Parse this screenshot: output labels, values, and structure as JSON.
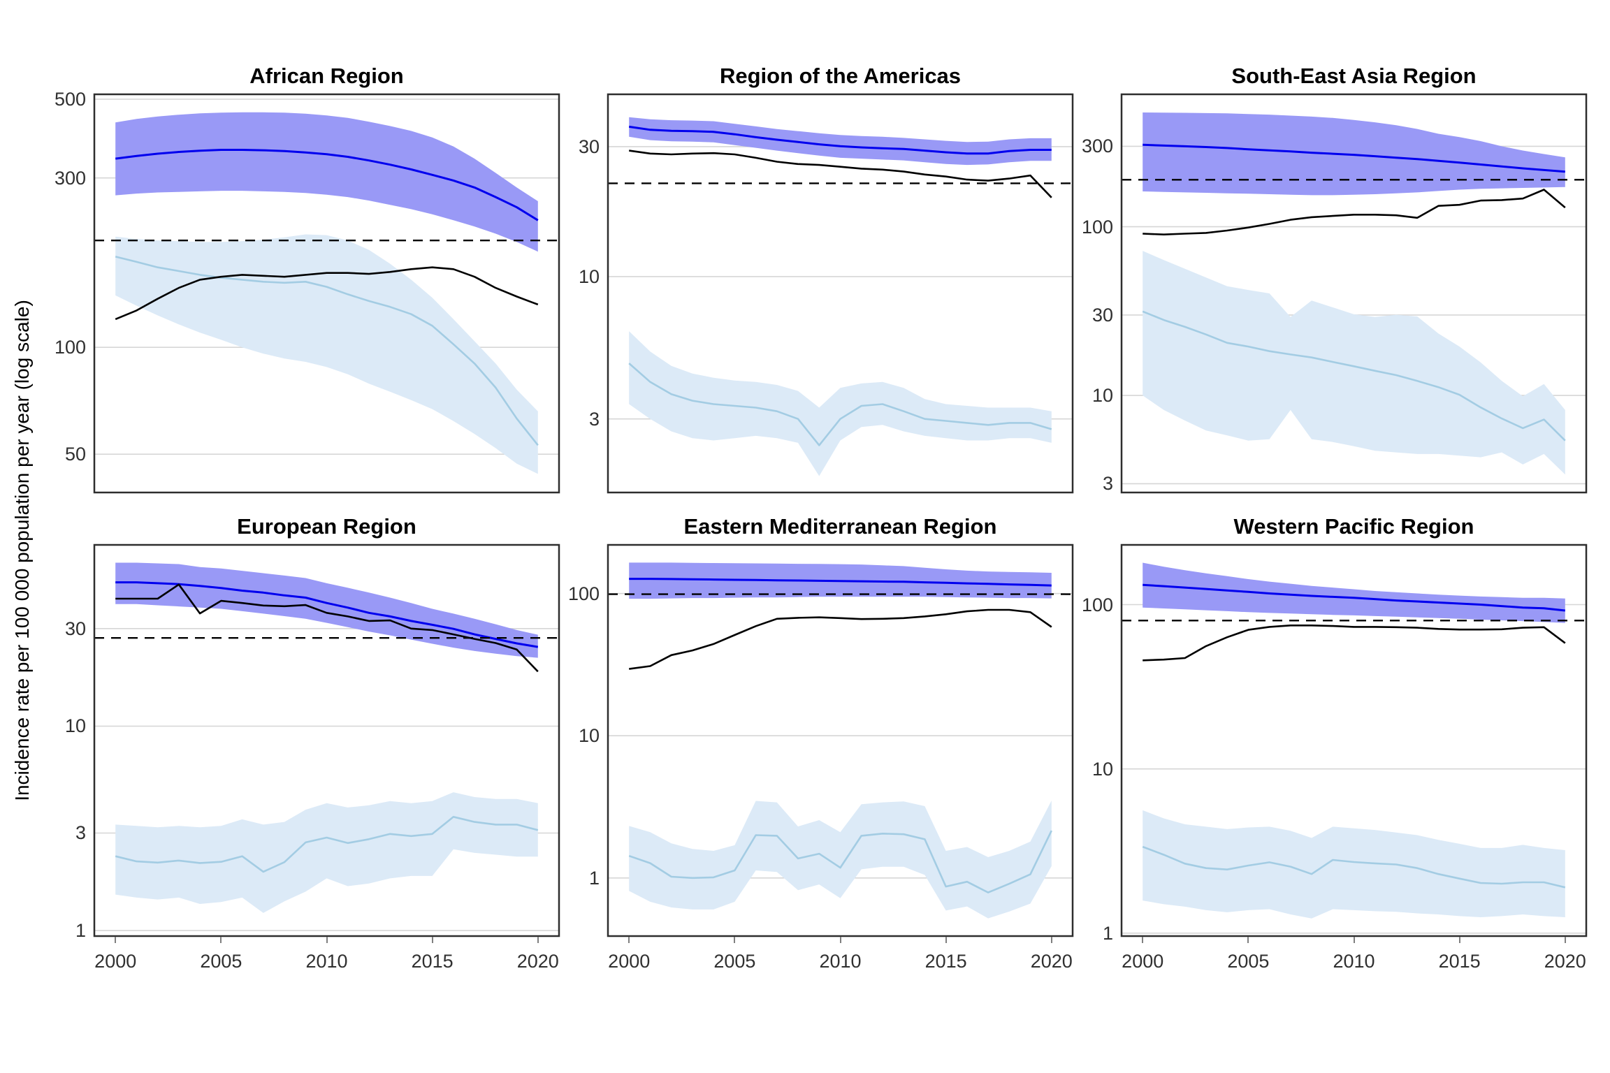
{
  "chart_data": {
    "type": "line",
    "title": "",
    "ylabel": "Incidence rate per 100 000 population per year (log scale)",
    "xlabel": "",
    "x": [
      2000,
      2001,
      2002,
      2003,
      2004,
      2005,
      2006,
      2007,
      2008,
      2009,
      2010,
      2011,
      2012,
      2013,
      2014,
      2015,
      2016,
      2017,
      2018,
      2019,
      2020
    ],
    "x_ticks": [
      2000,
      2005,
      2010,
      2015,
      2020
    ],
    "x_range": [
      1999,
      2021
    ],
    "grid": "major-horizontal-only",
    "legend": "none",
    "series_roles": [
      "blue_estimate_line",
      "blue_ribbon_upper",
      "blue_ribbon_lower",
      "black_line",
      "light_blue_line",
      "light_ribbon_upper",
      "light_ribbon_lower",
      "dashed_reference_level"
    ],
    "panels": [
      {
        "title": "African Region",
        "row": 0,
        "col": 0,
        "ylim": [
          39,
          516
        ],
        "yticks": [
          500,
          300,
          100,
          50
        ],
        "dashed": 200,
        "series": {
          "blue": [
            340,
            346,
            351,
            355,
            358,
            360,
            360,
            359,
            357,
            354,
            350,
            344,
            336,
            327,
            317,
            306,
            295,
            282,
            265,
            248,
            228
          ],
          "blue_upper": [
            430,
            440,
            447,
            452,
            456,
            458,
            459,
            459,
            458,
            455,
            450,
            443,
            432,
            420,
            407,
            390,
            368,
            340,
            310,
            282,
            258
          ],
          "blue_lower": [
            268,
            271,
            273,
            274,
            275,
            276,
            276,
            275,
            274,
            272,
            269,
            265,
            259,
            252,
            245,
            237,
            228,
            219,
            209,
            198,
            186
          ],
          "black": [
            120,
            127,
            137,
            147,
            155,
            158,
            160,
            159,
            158,
            160,
            162,
            162,
            161,
            163,
            166,
            168,
            166,
            158,
            147,
            139,
            132
          ],
          "light": [
            180,
            174,
            168,
            164,
            160,
            157,
            155,
            153,
            152,
            153,
            148,
            141,
            135,
            130,
            124,
            115,
            102,
            90,
            77,
            63,
            53
          ],
          "light_upper": [
            205,
            202,
            200,
            199,
            198,
            198,
            199,
            201,
            204,
            208,
            207,
            200,
            188,
            172,
            155,
            138,
            120,
            104,
            90,
            76,
            66
          ],
          "light_lower": [
            140,
            131,
            123,
            116,
            110,
            105,
            100,
            96,
            93,
            91,
            88,
            84,
            79,
            75,
            71,
            67,
            62,
            57,
            52,
            47,
            44
          ]
        }
      },
      {
        "title": "Region of the Americas",
        "row": 0,
        "col": 1,
        "ylim": [
          1.61,
          46.7
        ],
        "yticks": [
          30,
          10,
          3
        ],
        "dashed": 22,
        "series": {
          "blue": [
            35.5,
            34.6,
            34.3,
            34.2,
            34.0,
            33.3,
            32.5,
            31.8,
            31.2,
            30.6,
            30.1,
            29.8,
            29.6,
            29.4,
            29.0,
            28.6,
            28.3,
            28.3,
            28.9,
            29.2,
            29.2
          ],
          "blue_upper": [
            38.5,
            37.8,
            37.5,
            37.4,
            37.2,
            36.4,
            35.6,
            34.8,
            34.2,
            33.6,
            33.1,
            32.8,
            32.6,
            32.3,
            31.9,
            31.5,
            31.2,
            31.3,
            31.9,
            32.2,
            32.2
          ],
          "blue_lower": [
            32.6,
            31.7,
            31.4,
            31.3,
            31.1,
            30.4,
            29.7,
            29.0,
            28.4,
            27.8,
            27.3,
            27.1,
            26.9,
            26.7,
            26.3,
            25.9,
            25.7,
            25.8,
            26.3,
            26.6,
            26.6
          ],
          "black": [
            29.0,
            28.3,
            28.1,
            28.3,
            28.4,
            28.1,
            27.3,
            26.4,
            25.9,
            25.7,
            25.3,
            24.9,
            24.7,
            24.3,
            23.7,
            23.3,
            22.7,
            22.5,
            22.9,
            23.5,
            19.5
          ],
          "light": [
            4.8,
            4.1,
            3.7,
            3.5,
            3.4,
            3.35,
            3.3,
            3.2,
            3.0,
            2.4,
            3.0,
            3.35,
            3.4,
            3.2,
            3.0,
            2.95,
            2.9,
            2.85,
            2.9,
            2.9,
            2.75
          ],
          "light_upper": [
            6.3,
            5.3,
            4.7,
            4.4,
            4.25,
            4.15,
            4.1,
            4.0,
            3.8,
            3.3,
            3.9,
            4.05,
            4.1,
            3.9,
            3.55,
            3.4,
            3.35,
            3.3,
            3.3,
            3.3,
            3.2
          ],
          "light_lower": [
            3.4,
            3.0,
            2.7,
            2.55,
            2.5,
            2.55,
            2.6,
            2.55,
            2.45,
            1.85,
            2.5,
            2.8,
            2.85,
            2.7,
            2.6,
            2.55,
            2.5,
            2.5,
            2.55,
            2.55,
            2.45
          ]
        }
      },
      {
        "title": "South-East Asia Region",
        "row": 0,
        "col": 2,
        "ylim": [
          2.66,
          610
        ],
        "yticks": [
          300,
          100,
          30,
          10,
          3
        ],
        "dashed": 190,
        "series": {
          "blue": [
            306,
            303,
            300,
            297,
            293,
            288,
            284,
            280,
            275,
            271,
            267,
            262,
            257,
            252,
            246,
            240,
            234,
            228,
            222,
            217,
            212
          ],
          "blue_upper": [
            476,
            475,
            474,
            472,
            470,
            466,
            462,
            456,
            450,
            442,
            430,
            416,
            400,
            380,
            356,
            340,
            322,
            300,
            283,
            270,
            258
          ],
          "blue_lower": [
            162,
            161,
            160,
            159,
            158,
            157,
            156,
            155,
            154,
            154,
            155,
            156,
            158,
            160,
            163,
            166,
            168,
            169,
            170,
            171,
            172
          ],
          "black": [
            91,
            90,
            91,
            92,
            95,
            99,
            104,
            110,
            114,
            116,
            118,
            118,
            117,
            113,
            133,
            135,
            143,
            144,
            147,
            166,
            130
          ],
          "light": [
            31.5,
            28,
            25.5,
            23,
            20.5,
            19.5,
            18.3,
            17.5,
            16.8,
            15.8,
            14.9,
            14.0,
            13.2,
            12.2,
            11.2,
            10.1,
            8.5,
            7.3,
            6.4,
            7.2,
            5.4
          ],
          "light_upper": [
            72,
            63.5,
            56.4,
            50,
            44.4,
            42.2,
            40.3,
            29.2,
            36.5,
            33.3,
            30.3,
            29.2,
            30.1,
            29.4,
            23.3,
            19.5,
            15.7,
            12.2,
            9.9,
            11.7,
            8.2
          ],
          "light_lower": [
            10.0,
            8.2,
            7.1,
            6.2,
            5.8,
            5.4,
            5.5,
            8.2,
            5.5,
            5.3,
            5.0,
            4.7,
            4.6,
            4.5,
            4.5,
            4.4,
            4.3,
            4.6,
            3.9,
            4.5,
            3.4
          ]
        }
      },
      {
        "title": "European Region",
        "row": 1,
        "col": 0,
        "ylim": [
          0.94,
          77
        ],
        "yticks": [
          30,
          10,
          3,
          1
        ],
        "dashed": 27,
        "series": {
          "blue": [
            50.5,
            50.5,
            50,
            49.5,
            48.5,
            47.4,
            46,
            45,
            43.6,
            42.5,
            40,
            38,
            35.8,
            34.4,
            32.7,
            31.3,
            29.9,
            28.1,
            26.7,
            25.4,
            24.4
          ],
          "blue_upper": [
            63,
            63,
            62.5,
            62,
            60,
            59,
            57.5,
            56,
            54.5,
            53,
            50,
            47.5,
            45,
            42.5,
            40,
            37.5,
            35.5,
            33.5,
            31.5,
            29.5,
            28
          ],
          "blue_lower": [
            39.5,
            39.5,
            39,
            38.5,
            38,
            37.5,
            36.5,
            35.5,
            34.5,
            33.5,
            32,
            30.5,
            29,
            27.8,
            26.5,
            25.3,
            24.2,
            23.3,
            22.6,
            22,
            21.6
          ],
          "black": [
            42,
            42,
            42,
            49.3,
            35.6,
            41,
            40,
            38.9,
            38.6,
            39.1,
            35.8,
            34.4,
            32.7,
            32.9,
            30,
            29.5,
            28.1,
            26.7,
            25.5,
            23.7,
            18.5
          ],
          "light": [
            2.31,
            2.18,
            2.15,
            2.2,
            2.14,
            2.17,
            2.31,
            1.94,
            2.16,
            2.7,
            2.85,
            2.68,
            2.8,
            2.97,
            2.9,
            2.97,
            3.6,
            3.4,
            3.3,
            3.3,
            3.1
          ],
          "light_upper": [
            3.3,
            3.25,
            3.2,
            3.25,
            3.2,
            3.25,
            3.5,
            3.3,
            3.4,
            3.9,
            4.2,
            4.0,
            4.1,
            4.3,
            4.2,
            4.3,
            4.75,
            4.5,
            4.4,
            4.4,
            4.2
          ],
          "light_lower": [
            1.5,
            1.45,
            1.42,
            1.45,
            1.35,
            1.38,
            1.45,
            1.22,
            1.39,
            1.55,
            1.8,
            1.65,
            1.7,
            1.8,
            1.85,
            1.85,
            2.5,
            2.4,
            2.35,
            2.3,
            2.3
          ]
        }
      },
      {
        "title": "Eastern Mediterranean Region",
        "row": 1,
        "col": 1,
        "ylim": [
          0.39,
          220
        ],
        "yticks": [
          100,
          10,
          1
        ],
        "dashed": 99,
        "series": {
          "blue": [
            127,
            127,
            126.5,
            126,
            125.5,
            125,
            124.5,
            124,
            123.5,
            123,
            122.5,
            122,
            121.5,
            121,
            120,
            119,
            118,
            117,
            116,
            115,
            114
          ],
          "blue_upper": [
            165,
            165,
            165,
            164.5,
            164,
            163.5,
            163,
            162.5,
            162,
            161.5,
            161,
            160,
            158,
            156,
            152,
            148,
            145,
            143,
            142,
            141,
            140
          ],
          "blue_lower": [
            92,
            92,
            92.5,
            93,
            93,
            93.5,
            94,
            94,
            94.5,
            95,
            95,
            95,
            95,
            95,
            95,
            94.5,
            94,
            93.5,
            93,
            93,
            92.5
          ],
          "black": [
            29.5,
            30.9,
            36.9,
            39.8,
            44.2,
            51.1,
            59,
            66.5,
            67.5,
            68.1,
            67.2,
            66.2,
            66.5,
            67.2,
            69.1,
            71.5,
            75,
            76.8,
            76.8,
            74,
            58.2
          ],
          "light": [
            1.43,
            1.27,
            1.02,
            1.0,
            1.01,
            1.13,
            2.0,
            1.98,
            1.37,
            1.48,
            1.18,
            1.98,
            2.05,
            2.03,
            1.87,
            0.87,
            0.94,
            0.79,
            0.91,
            1.06,
            2.15
          ],
          "light_upper": [
            2.32,
            2.1,
            1.75,
            1.6,
            1.55,
            1.7,
            3.48,
            3.4,
            2.3,
            2.55,
            2.1,
            3.3,
            3.4,
            3.45,
            3.2,
            1.55,
            1.65,
            1.4,
            1.55,
            1.8,
            3.5
          ],
          "light_lower": [
            0.81,
            0.68,
            0.62,
            0.6,
            0.6,
            0.68,
            1.13,
            1.1,
            0.82,
            0.9,
            0.72,
            1.15,
            1.2,
            1.2,
            1.05,
            0.59,
            0.63,
            0.52,
            0.58,
            0.66,
            1.21
          ]
        }
      },
      {
        "title": "Western Pacific Region",
        "row": 1,
        "col": 2,
        "ylim": [
          0.96,
          231
        ],
        "yticks": [
          100,
          10,
          1
        ],
        "dashed": 80,
        "series": {
          "blue": [
            132,
            129.5,
            127,
            124.5,
            122,
            119.5,
            117,
            115,
            113,
            111.5,
            110,
            108,
            106,
            104.5,
            103,
            101.5,
            100,
            98,
            96,
            95,
            92
          ],
          "blue_upper": [
            180,
            170,
            162,
            155,
            149,
            143,
            138,
            134,
            130,
            127,
            124,
            121,
            119,
            117,
            115,
            113.5,
            112,
            111,
            110,
            110,
            109
          ],
          "blue_lower": [
            96,
            94.8,
            93.6,
            92.4,
            91.2,
            90,
            89,
            88.2,
            87.4,
            86.6,
            86,
            85.2,
            84.4,
            83.6,
            82.8,
            82,
            81,
            80.2,
            79.4,
            78.4,
            77.3
          ],
          "black": [
            45.8,
            46.3,
            47.3,
            55.9,
            63.3,
            70.2,
            73.2,
            74.7,
            74.7,
            74.1,
            73.2,
            73.2,
            72.9,
            72.3,
            71.1,
            70.5,
            70.5,
            70.8,
            72.3,
            72.9,
            58.3
          ],
          "light": [
            3.36,
            3.0,
            2.65,
            2.49,
            2.44,
            2.58,
            2.7,
            2.54,
            2.29,
            2.79,
            2.71,
            2.66,
            2.62,
            2.49,
            2.29,
            2.15,
            2.02,
            2.0,
            2.04,
            2.04,
            1.9
          ],
          "light_upper": [
            5.6,
            5.0,
            4.6,
            4.45,
            4.3,
            4.4,
            4.45,
            4.2,
            3.8,
            4.45,
            4.35,
            4.25,
            4.1,
            3.95,
            3.7,
            3.5,
            3.3,
            3.3,
            3.45,
            3.3,
            3.2
          ],
          "light_lower": [
            1.58,
            1.5,
            1.45,
            1.38,
            1.34,
            1.38,
            1.4,
            1.3,
            1.23,
            1.4,
            1.38,
            1.36,
            1.35,
            1.32,
            1.3,
            1.27,
            1.25,
            1.27,
            1.3,
            1.27,
            1.25
          ]
        }
      }
    ],
    "colors": {
      "blue_line": "#0000EE",
      "blue_ribbon": "#9999F6",
      "light_line": "#A3CCE3",
      "light_ribbon": "#DCEAF7",
      "black_line": "#000000",
      "dashed_line": "#000000",
      "gridline": "#D6D6D6",
      "panel_border": "#2E2E2E",
      "tick_text": "#303030",
      "title_text": "#000000",
      "tick_mark": "#7F7F7F",
      "background": "#FFFFFF"
    }
  }
}
